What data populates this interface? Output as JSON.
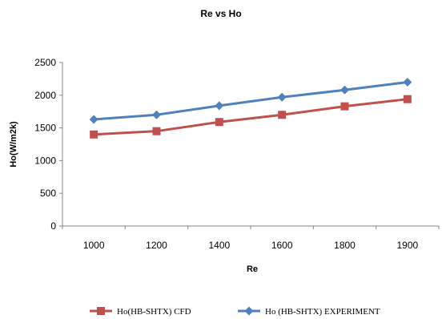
{
  "chart_data": {
    "type": "line",
    "title": "Re vs Ho",
    "xlabel": "Re",
    "ylabel": "Ho(W/m2k)",
    "categories": [
      "1000",
      "1200",
      "1400",
      "1600",
      "1800",
      "1900"
    ],
    "ylim": [
      0,
      2500
    ],
    "yticks": [
      "0",
      "500",
      "1000",
      "1500",
      "2000",
      "2500"
    ],
    "grid": false,
    "legend_position": "bottom",
    "series": [
      {
        "name": "Ho(HB-SHTX) CFD",
        "color": "#c0504d",
        "marker": "square",
        "values": [
          1400,
          1450,
          1590,
          1700,
          1830,
          1940
        ]
      },
      {
        "name": "Ho (HB-SHTX) EXPERIMENT",
        "color": "#4f81bd",
        "marker": "diamond",
        "values": [
          1630,
          1700,
          1840,
          1970,
          2080,
          2200
        ]
      }
    ]
  }
}
